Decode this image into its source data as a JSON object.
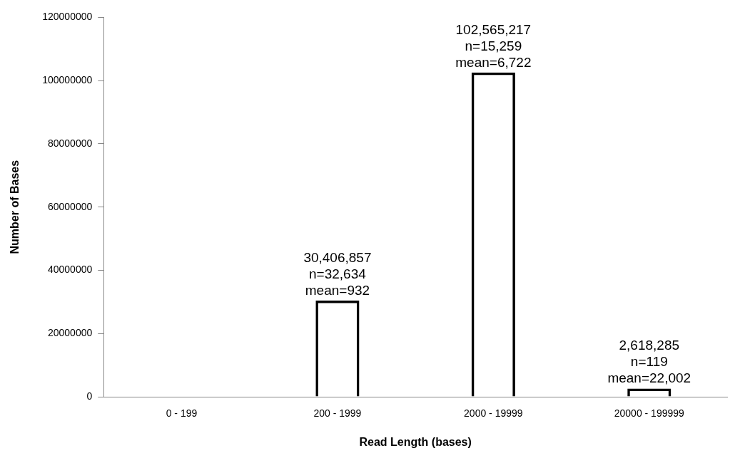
{
  "chart_data": {
    "type": "bar",
    "xlabel": "Read Length (bases)",
    "ylabel": "Number of Bases",
    "categories": [
      "0 - 199",
      "200 - 1999",
      "2000 - 19999",
      "20000 - 199999"
    ],
    "values": [
      null,
      30406857,
      102565217,
      2618285
    ],
    "value_labels": [
      null,
      "30,406,857\nn=32,634\nmean=932",
      "102,565,217\nn=15,259\nmean=6,722",
      "2,618,285\nn=119\nmean=22,002"
    ],
    "color": "#000000",
    "ylim": [
      0,
      120000000
    ],
    "yticks": [
      0,
      20000000,
      40000000,
      60000000,
      80000000,
      100000000,
      120000000
    ],
    "grid": false,
    "legend": false
  }
}
